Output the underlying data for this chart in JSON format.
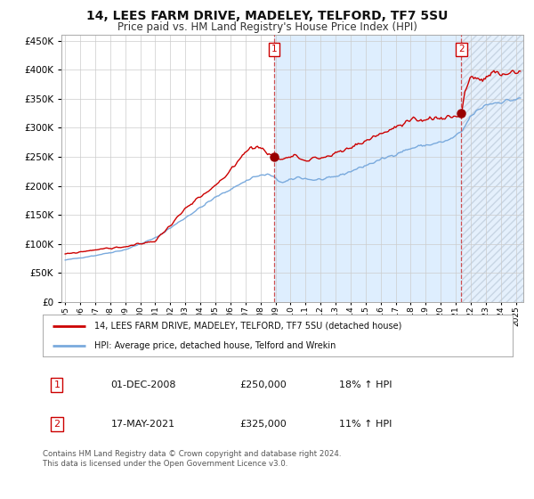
{
  "title": "14, LEES FARM DRIVE, MADELEY, TELFORD, TF7 5SU",
  "subtitle": "Price paid vs. HM Land Registry's House Price Index (HPI)",
  "title_fontsize": 10,
  "subtitle_fontsize": 8.5,
  "hpi_color": "#7aaadd",
  "price_color": "#cc0000",
  "bg_color": "#ffffff",
  "plot_bg_color": "#ffffff",
  "grid_color": "#cccccc",
  "ylim": [
    0,
    460000
  ],
  "yticks": [
    0,
    50000,
    100000,
    150000,
    200000,
    250000,
    300000,
    350000,
    400000,
    450000
  ],
  "xlim_start": 1994.75,
  "xlim_end": 2025.5,
  "transaction1_date": 2008.92,
  "transaction1_price": 250000,
  "transaction1_label": "1",
  "transaction2_date": 2021.38,
  "transaction2_price": 325000,
  "transaction2_label": "2",
  "shade_start": 2008.92,
  "shade_end": 2021.38,
  "legend_line1": "14, LEES FARM DRIVE, MADELEY, TELFORD, TF7 5SU (detached house)",
  "legend_line2": "HPI: Average price, detached house, Telford and Wrekin",
  "table_row1": [
    "1",
    "01-DEC-2008",
    "£250,000",
    "18% ↑ HPI"
  ],
  "table_row2": [
    "2",
    "17-MAY-2021",
    "£325,000",
    "11% ↑ HPI"
  ],
  "footnote": "Contains HM Land Registry data © Crown copyright and database right 2024.\nThis data is licensed under the Open Government Licence v3.0."
}
